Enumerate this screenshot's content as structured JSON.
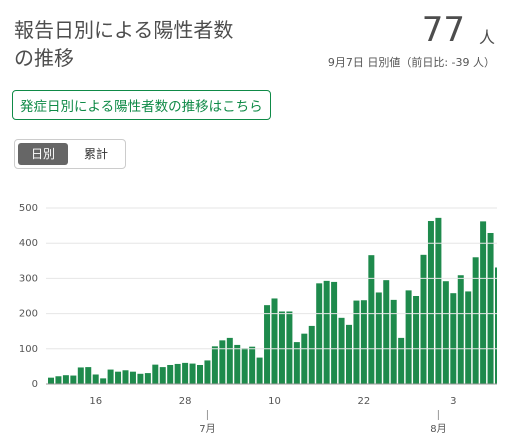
{
  "header": {
    "title": "報告日別による陽性者数の推移",
    "value": "77",
    "unit": "人",
    "subtitle": "9月7日 日別値（前日比: -39 人）"
  },
  "link_button": "発症日別による陽性者数の推移はこちら",
  "toggle": [
    "日別",
    "累計"
  ],
  "chart_data": {
    "type": "bar",
    "color": "#1e8a4c",
    "grid": true,
    "ylim": [
      0,
      500
    ],
    "yticks": [
      0,
      100,
      200,
      300,
      400,
      500
    ],
    "categories": [
      null,
      null,
      null,
      null,
      null,
      null,
      "16",
      null,
      null,
      null,
      null,
      null,
      null,
      null,
      null,
      null,
      null,
      null,
      "28",
      null,
      null,
      null,
      null,
      null,
      null,
      null,
      null,
      null,
      null,
      null,
      "10",
      null,
      null,
      null,
      null,
      null,
      null,
      null,
      null,
      null,
      null,
      null,
      "22",
      null,
      null,
      null,
      null,
      null,
      null,
      null,
      null,
      null,
      null,
      null,
      "3",
      null,
      null,
      null,
      null,
      null,
      null
    ],
    "months": [
      null,
      null,
      null,
      null,
      null,
      null,
      null,
      null,
      null,
      null,
      null,
      null,
      null,
      null,
      null,
      null,
      null,
      null,
      null,
      null,
      null,
      "7月",
      null,
      null,
      null,
      null,
      null,
      null,
      null,
      null,
      null,
      null,
      null,
      null,
      null,
      null,
      null,
      null,
      null,
      null,
      null,
      null,
      null,
      null,
      null,
      null,
      null,
      null,
      null,
      null,
      null,
      null,
      "8月",
      null,
      null,
      null,
      null,
      null,
      null,
      null,
      null
    ],
    "values": [
      18,
      22,
      25,
      24,
      47,
      48,
      27,
      16,
      41,
      35,
      39,
      35,
      29,
      31,
      55,
      48,
      54,
      57,
      60,
      58,
      54,
      67,
      107,
      124,
      131,
      111,
      102,
      106,
      75,
      224,
      243,
      206,
      206,
      119,
      143,
      165,
      286,
      293,
      290,
      188,
      168,
      237,
      238,
      366,
      260,
      295,
      239,
      131,
      266,
      250,
      367,
      463,
      472,
      292,
      258,
      309,
      263,
      360,
      462,
      429,
      331
    ]
  }
}
